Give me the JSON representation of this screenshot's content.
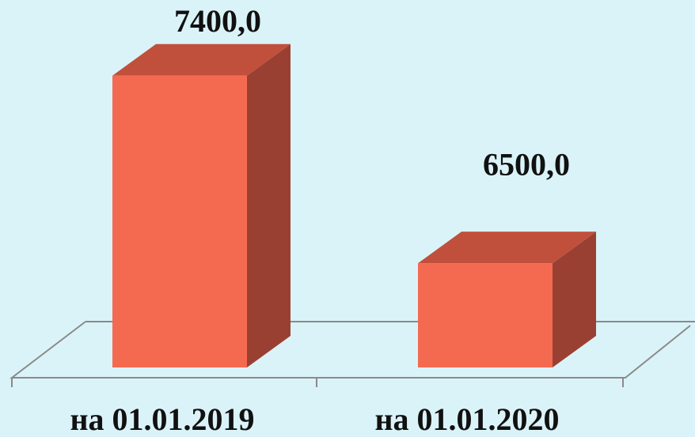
{
  "chart_data": {
    "type": "bar3d",
    "categories": [
      "на 01.01.2019",
      "на 01.01.2020"
    ],
    "values": [
      7400,
      6500
    ],
    "value_labels": [
      "7400,0",
      "6500,0"
    ],
    "color": "#f46a50",
    "ylim": [
      6000,
      7600
    ]
  }
}
